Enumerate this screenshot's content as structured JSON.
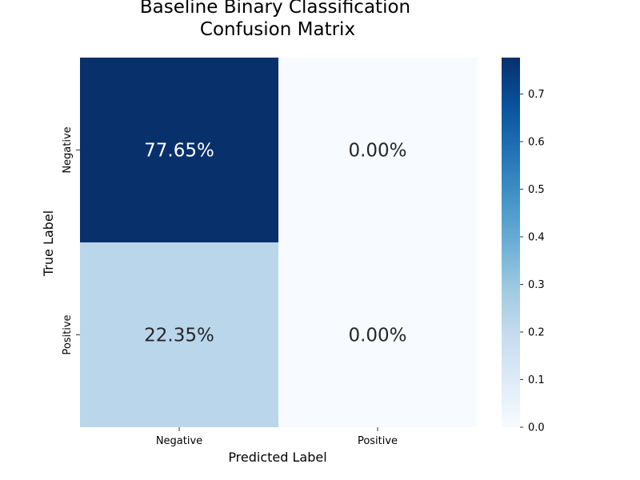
{
  "chart_data": {
    "type": "heatmap",
    "title_lines": [
      "Baseline Binary Classification",
      "Confusion Matrix"
    ],
    "xlabel": "Predicted Label",
    "ylabel": "True Label",
    "x_categories": [
      "Negative",
      "Positive"
    ],
    "y_categories": [
      "Negative",
      "Positive"
    ],
    "values": [
      [
        0.7765,
        0.0
      ],
      [
        0.2235,
        0.0
      ]
    ],
    "cell_labels": [
      [
        "77.65%",
        "0.00%"
      ],
      [
        "22.35%",
        "0.00%"
      ]
    ],
    "colormap": "Blues",
    "colorbar": {
      "range": [
        0,
        0.7765
      ],
      "ticks": [
        0.0,
        0.1,
        0.2,
        0.3,
        0.4,
        0.5,
        0.6,
        0.7
      ],
      "tick_labels": [
        "0.0",
        "0.1",
        "0.2",
        "0.3",
        "0.4",
        "0.5",
        "0.6",
        "0.7"
      ]
    },
    "colors": {
      "dark": "#08306b",
      "light": "#f7fbff",
      "text_on_dark": "#ffffff",
      "text_on_light": "#262626"
    },
    "grid": false,
    "legend": "colorbar-right"
  }
}
